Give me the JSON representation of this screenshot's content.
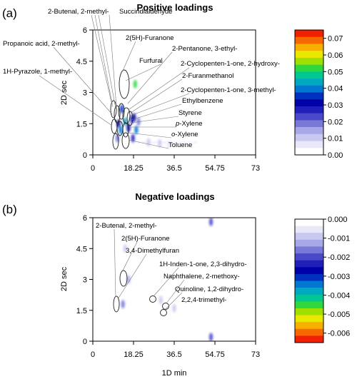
{
  "chart_data": [
    {
      "type": "heatmap",
      "panel_label": "(a)",
      "title": "Positive loadings",
      "xlabel": "",
      "ylabel": "2D sec",
      "xlim": [
        0,
        73
      ],
      "ylim": [
        0,
        6
      ],
      "x_ticks": [
        "0",
        "18.25",
        "36.5",
        "54.75",
        "73"
      ],
      "y_ticks": [
        "0",
        "1.5",
        "3",
        "4.5",
        "6"
      ],
      "colorbar": {
        "min": 0.0,
        "max": 0.075,
        "ticks": [
          "0.00",
          "0.01",
          "0.02",
          "0.03",
          "0.04",
          "0.05",
          "0.06",
          "0.07"
        ],
        "colors": [
          "#ffffff",
          "#e8e8f8",
          "#c8c8f0",
          "#a8a8e8",
          "#7878d8",
          "#4848c8",
          "#2020b8",
          "#0000a8",
          "#0030c0",
          "#0078d0",
          "#00a8c0",
          "#00c890",
          "#30d840",
          "#a0e000",
          "#e8e800",
          "#f8b000",
          "#f86800",
          "#f02000"
        ]
      },
      "annotations": [
        {
          "text": "2-Butenal, 2-methyl-",
          "italic_prefix": ""
        },
        {
          "text": "Succindialdehyde",
          "italic_prefix": ""
        },
        {
          "text": "Propanoic acid, 2-methyl-",
          "italic_prefix": ""
        },
        {
          "text": "2(5H)-Furanone",
          "italic_prefix": ""
        },
        {
          "text": "2-Pentanone, 3-ethyl-",
          "italic_prefix": ""
        },
        {
          "text": "Furfural",
          "italic_prefix": ""
        },
        {
          "text": "1H-Pyrazole, 1-methyl-",
          "italic_prefix": ""
        },
        {
          "text": "2-Cyclopenten-1-one, 2-hydroxy-",
          "italic_prefix": ""
        },
        {
          "text": "2-Furanmethanol",
          "italic_prefix": ""
        },
        {
          "text": "2-Cyclopenten-1-one, 3-methyl-",
          "italic_prefix": ""
        },
        {
          "text": "Ethylbenzene",
          "italic_prefix": ""
        },
        {
          "text": "Styrene",
          "italic_prefix": ""
        },
        {
          "text": "-Xylene",
          "italic_prefix": "p"
        },
        {
          "text": "-Xylene",
          "italic_prefix": "o"
        },
        {
          "text": "Toluene",
          "italic_prefix": ""
        }
      ],
      "peaks": [
        {
          "x": 11.5,
          "y": 1.5,
          "value": 0.03
        },
        {
          "x": 12.5,
          "y": 1.2,
          "value": 0.04
        },
        {
          "x": 11.0,
          "y": 0.8,
          "value": 0.02
        },
        {
          "x": 13.0,
          "y": 2.2,
          "value": 0.035
        },
        {
          "x": 14.5,
          "y": 1.6,
          "value": 0.045
        },
        {
          "x": 16.0,
          "y": 1.3,
          "value": 0.03
        },
        {
          "x": 17.5,
          "y": 1.7,
          "value": 0.025
        },
        {
          "x": 19.0,
          "y": 3.4,
          "value": 0.05
        },
        {
          "x": 18.5,
          "y": 1.8,
          "value": 0.03
        },
        {
          "x": 19.5,
          "y": 1.2,
          "value": 0.04
        },
        {
          "x": 18.0,
          "y": 0.8,
          "value": 0.025
        },
        {
          "x": 20.5,
          "y": 1.6,
          "value": 0.02
        },
        {
          "x": 25.0,
          "y": 0.6,
          "value": 0.012
        },
        {
          "x": 30.0,
          "y": 0.55,
          "value": 0.01
        },
        {
          "x": 34.0,
          "y": 0.5,
          "value": 0.008
        }
      ]
    },
    {
      "type": "heatmap",
      "panel_label": "(b)",
      "title": "Negative loadings",
      "xlabel": "1D min",
      "ylabel": "2D sec",
      "xlim": [
        0,
        73
      ],
      "ylim": [
        0,
        6
      ],
      "x_ticks": [
        "0",
        "18.25",
        "36.5",
        "54.75",
        "73"
      ],
      "y_ticks": [
        "0",
        "1.5",
        "3",
        "4.5",
        "6"
      ],
      "colorbar": {
        "min": -0.0065,
        "max": 0.0,
        "ticks": [
          "0.000",
          "-0.001",
          "-0.002",
          "-0.003",
          "-0.004",
          "-0.005",
          "-0.006"
        ],
        "colors": [
          "#ffffff",
          "#e8e8f8",
          "#c8c8f0",
          "#a8a8e8",
          "#7878d8",
          "#4848c8",
          "#2020b8",
          "#0000a8",
          "#0030c0",
          "#0078d0",
          "#00a8c0",
          "#00c890",
          "#30d840",
          "#a0e000",
          "#e8e800",
          "#f8b000",
          "#f86800",
          "#f02000"
        ]
      },
      "annotations": [
        {
          "text": "2-Butenal, 2-methyl-",
          "italic_prefix": ""
        },
        {
          "text": "2(5H)-Furanone",
          "italic_prefix": ""
        },
        {
          "text": "3,4-Dimethylfuran",
          "italic_prefix": ""
        },
        {
          "text": "1H-Inden-1-one, 2,3-dihydro-",
          "italic_prefix": ""
        },
        {
          "text": "Naphthalene, 2-methoxy-",
          "italic_prefix": ""
        },
        {
          "text": "Quinoline, 1,2-dihydro-",
          "italic_prefix": ""
        },
        {
          "text": "2,2,4-trimethyl-",
          "italic_prefix": ""
        }
      ],
      "peaks": [
        {
          "x": 13.5,
          "y": 1.8,
          "value": -0.0015
        },
        {
          "x": 14.5,
          "y": 4.5,
          "value": -0.001
        },
        {
          "x": 16.0,
          "y": 3.0,
          "value": -0.0012
        },
        {
          "x": 30.5,
          "y": 2.0,
          "value": -0.001
        },
        {
          "x": 36.5,
          "y": 1.6,
          "value": -0.0008
        },
        {
          "x": 53.0,
          "y": 5.8,
          "value": -0.002
        },
        {
          "x": 53.0,
          "y": 0.2,
          "value": -0.002
        }
      ]
    }
  ]
}
